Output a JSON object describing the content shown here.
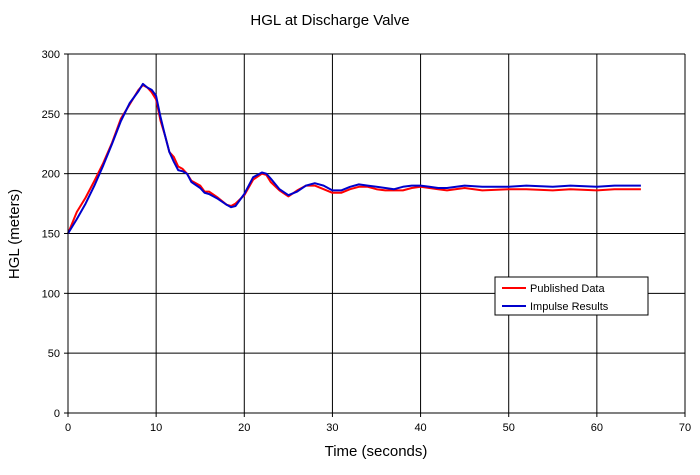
{
  "chart_data": {
    "type": "line",
    "title": "HGL at Discharge Valve",
    "xlabel": "Time (seconds)",
    "ylabel": "HGL (meters)",
    "xlim": [
      0,
      70
    ],
    "ylim": [
      0,
      300
    ],
    "x_ticks": [
      0,
      10,
      20,
      30,
      40,
      50,
      60,
      70
    ],
    "y_ticks": [
      0,
      50,
      100,
      150,
      200,
      250,
      300
    ],
    "grid": true,
    "legend_position": "right",
    "series": [
      {
        "name": "Published Data",
        "color": "#ff0000",
        "x": [
          0,
          1,
          2,
          3,
          4,
          5,
          6,
          7,
          8,
          8.5,
          9,
          9.5,
          10,
          10.5,
          11,
          11.5,
          12,
          12.5,
          13,
          13.5,
          14,
          15,
          15.5,
          16,
          17,
          18,
          18.5,
          19,
          20,
          21,
          22,
          22.5,
          23,
          24,
          25,
          26,
          27,
          28,
          29,
          30,
          31,
          32,
          33,
          34,
          35,
          36,
          37,
          38,
          39,
          40,
          41,
          42,
          43,
          45,
          47,
          50,
          52,
          55,
          57,
          60,
          62,
          65
        ],
        "y": [
          150,
          168,
          180,
          194,
          209,
          226,
          246,
          258,
          270,
          274,
          272,
          268,
          262,
          244,
          232,
          218,
          214,
          206,
          204,
          200,
          194,
          190,
          185,
          185,
          180,
          174,
          173,
          175,
          182,
          195,
          200,
          199,
          193,
          186,
          181,
          186,
          190,
          190,
          187,
          184,
          184,
          187,
          189,
          189,
          187,
          186,
          186,
          186,
          188,
          189,
          188,
          187,
          186,
          188,
          186,
          187,
          187,
          186,
          187,
          186,
          187,
          187
        ]
      },
      {
        "name": "Impulse Results",
        "color": "#0000cc",
        "x": [
          0,
          1,
          2,
          3,
          4,
          5,
          6,
          7,
          8,
          8.5,
          9,
          9.5,
          10,
          10.5,
          11,
          11.5,
          12,
          12.5,
          13,
          13.5,
          14,
          15,
          15.5,
          16,
          17,
          18,
          18.5,
          19,
          20,
          21,
          22,
          22.5,
          23,
          24,
          25,
          26,
          27,
          28,
          29,
          30,
          31,
          32,
          33,
          34,
          35,
          36,
          37,
          38,
          39,
          40,
          41,
          42,
          43,
          45,
          47,
          50,
          52,
          55,
          57,
          60,
          62,
          65
        ],
        "y": [
          150,
          162,
          175,
          190,
          207,
          225,
          244,
          259,
          269,
          275,
          272,
          270,
          265,
          247,
          232,
          218,
          210,
          203,
          202,
          200,
          193,
          188,
          184,
          183,
          179,
          174,
          172,
          173,
          183,
          197,
          201,
          200,
          196,
          187,
          182,
          185,
          190,
          192,
          190,
          186,
          186,
          189,
          191,
          190,
          189,
          188,
          187,
          189,
          190,
          190,
          189,
          188,
          188,
          190,
          189,
          189,
          190,
          189,
          190,
          189,
          190,
          190
        ]
      }
    ]
  }
}
